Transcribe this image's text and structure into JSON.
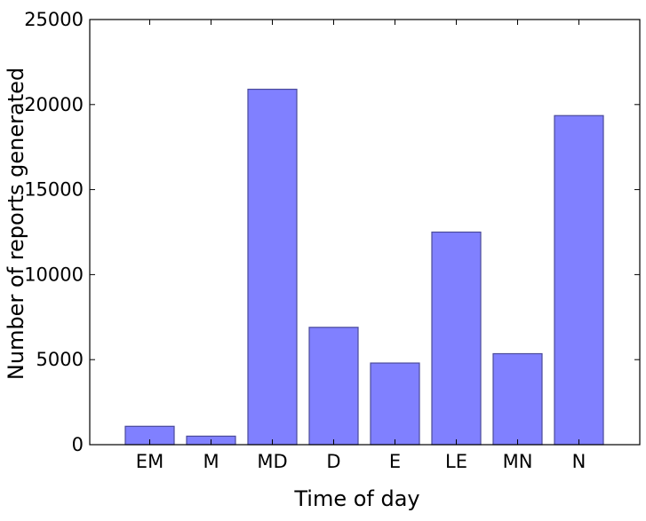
{
  "chart_data": {
    "type": "bar",
    "categories": [
      "EM",
      "M",
      "MD",
      "D",
      "E",
      "LE",
      "MN",
      "N"
    ],
    "values": [
      1080,
      500,
      20900,
      6900,
      4800,
      12500,
      5350,
      19350
    ],
    "title": "",
    "xlabel": "Time of day",
    "ylabel": "Number of reports generated",
    "ylim": [
      0,
      25000
    ],
    "yticks": [
      0,
      5000,
      10000,
      15000,
      20000,
      25000
    ],
    "ytick_labels": [
      "0",
      "5000",
      "10000",
      "15000",
      "20000",
      "25000"
    ],
    "grid": false,
    "legend": "none",
    "colors": {
      "bar_fill": "#8080ff",
      "bar_edge": "#4a4a9a",
      "axis": "#000000"
    }
  }
}
